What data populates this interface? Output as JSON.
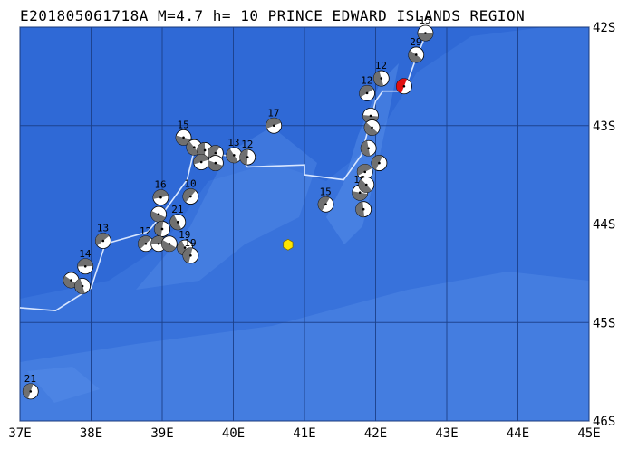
{
  "map": {
    "title": "E201805061718A  M=4.7  h= 10 PRINCE EDWARD ISLANDS REGION",
    "lon_range": [
      37,
      45
    ],
    "lat_range": [
      -42,
      -46
    ],
    "x_ticks": [
      "37E",
      "38E",
      "39E",
      "40E",
      "41E",
      "42E",
      "43E",
      "44E",
      "45E"
    ],
    "y_ticks": [
      "42S",
      "43S",
      "44S",
      "45S",
      "46S"
    ],
    "colors": {
      "ocean_deep": "#2f69d6",
      "ocean_mid": "#3f7ae0",
      "ocean_shallow": "#5b93ea",
      "ridge": "#2a5ec8",
      "grid": "#1c3f88",
      "track": "#d8e6ff",
      "event": "#ffe600",
      "mech_dark": "#707070",
      "mech_light": "#ffffff",
      "highlight": "#e01010"
    },
    "event_location": {
      "lon": 40.77,
      "lat": -44.21
    },
    "mechanisms": [
      {
        "n": "15",
        "lon": 42.7,
        "lat": -42.06
      },
      {
        "n": "29",
        "lon": 42.57,
        "lat": -42.28
      },
      {
        "n": "12",
        "lon": 42.08,
        "lat": -42.52
      },
      {
        "n": "",
        "lon": 42.4,
        "lat": -42.6,
        "red": true
      },
      {
        "n": "12",
        "lon": 41.88,
        "lat": -42.67
      },
      {
        "n": "",
        "lon": 41.93,
        "lat": -42.9
      },
      {
        "n": "",
        "lon": 41.95,
        "lat": -43.02
      },
      {
        "n": "",
        "lon": 41.9,
        "lat": -43.23
      },
      {
        "n": "",
        "lon": 42.05,
        "lat": -43.38
      },
      {
        "n": "",
        "lon": 41.85,
        "lat": -43.47
      },
      {
        "n": "18",
        "lon": 41.78,
        "lat": -43.68
      },
      {
        "n": "",
        "lon": 41.87,
        "lat": -43.6
      },
      {
        "n": "",
        "lon": 41.83,
        "lat": -43.85
      },
      {
        "n": "15",
        "lon": 41.3,
        "lat": -43.8
      },
      {
        "n": "17",
        "lon": 40.57,
        "lat": -43.0
      },
      {
        "n": "15",
        "lon": 39.3,
        "lat": -43.12
      },
      {
        "n": "",
        "lon": 39.45,
        "lat": -43.22
      },
      {
        "n": "",
        "lon": 39.6,
        "lat": -43.25
      },
      {
        "n": "",
        "lon": 39.75,
        "lat": -43.28
      },
      {
        "n": "",
        "lon": 39.55,
        "lat": -43.37
      },
      {
        "n": "",
        "lon": 39.75,
        "lat": -43.38
      },
      {
        "n": "13",
        "lon": 40.01,
        "lat": -43.3
      },
      {
        "n": "12",
        "lon": 40.2,
        "lat": -43.32
      },
      {
        "n": "10",
        "lon": 39.4,
        "lat": -43.72
      },
      {
        "n": "16",
        "lon": 38.98,
        "lat": -43.73
      },
      {
        "n": "",
        "lon": 38.95,
        "lat": -43.9
      },
      {
        "n": "21",
        "lon": 39.22,
        "lat": -43.98
      },
      {
        "n": "",
        "lon": 39.0,
        "lat": -44.05
      },
      {
        "n": "12",
        "lon": 38.77,
        "lat": -44.2
      },
      {
        "n": "",
        "lon": 38.95,
        "lat": -44.2
      },
      {
        "n": "",
        "lon": 39.1,
        "lat": -44.2
      },
      {
        "n": "19",
        "lon": 39.32,
        "lat": -44.24
      },
      {
        "n": "19",
        "lon": 39.4,
        "lat": -44.32
      },
      {
        "n": "13",
        "lon": 38.17,
        "lat": -44.17
      },
      {
        "n": "14",
        "lon": 37.92,
        "lat": -44.43
      },
      {
        "n": "",
        "lon": 37.72,
        "lat": -44.57
      },
      {
        "n": "",
        "lon": 37.88,
        "lat": -44.63
      },
      {
        "n": "21",
        "lon": 37.15,
        "lat": -45.7
      }
    ],
    "track": [
      {
        "lon": 37.0,
        "lat": -44.85
      },
      {
        "lon": 37.5,
        "lat": -44.88
      },
      {
        "lon": 38.0,
        "lat": -44.65
      },
      {
        "lon": 38.2,
        "lat": -44.2
      },
      {
        "lon": 38.8,
        "lat": -44.08
      },
      {
        "lon": 39.0,
        "lat": -43.9
      },
      {
        "lon": 39.35,
        "lat": -43.55
      },
      {
        "lon": 39.45,
        "lat": -43.25
      },
      {
        "lon": 40.1,
        "lat": -43.33
      },
      {
        "lon": 40.2,
        "lat": -43.42
      },
      {
        "lon": 41.0,
        "lat": -43.4
      },
      {
        "lon": 41.0,
        "lat": -43.5
      },
      {
        "lon": 41.55,
        "lat": -43.55
      },
      {
        "lon": 41.8,
        "lat": -43.3
      },
      {
        "lon": 42.0,
        "lat": -42.75
      },
      {
        "lon": 42.1,
        "lat": -42.65
      },
      {
        "lon": 42.4,
        "lat": -42.65
      },
      {
        "lon": 42.55,
        "lat": -42.35
      },
      {
        "lon": 42.75,
        "lat": -42.0
      }
    ]
  }
}
